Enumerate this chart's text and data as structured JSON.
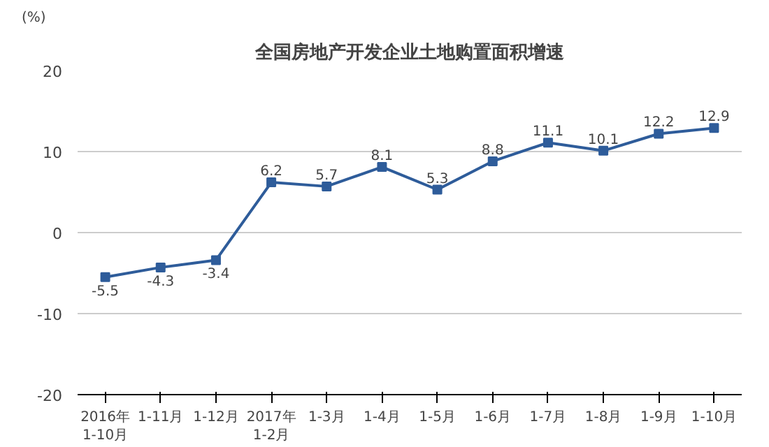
{
  "chart_data": {
    "type": "line",
    "title": "全国房地产开发企业土地购置面积增速",
    "ylabel": "(%)",
    "categories": [
      "2016年\n1-10月",
      "1-11月",
      "1-12月",
      "2017年\n1-2月",
      "1-3月",
      "1-4月",
      "1-5月",
      "1-6月",
      "1-7月",
      "1-8月",
      "1-9月",
      "1-10月"
    ],
    "values": [
      -5.5,
      -4.3,
      -3.4,
      6.2,
      5.7,
      8.1,
      5.3,
      8.8,
      11.1,
      10.1,
      12.2,
      12.9
    ],
    "color": "#2e5c9a",
    "ylim": [
      -20,
      20
    ],
    "yticks": [
      -20,
      -10,
      0,
      10,
      20
    ],
    "grid": "y",
    "marker": "square",
    "line_style": "solid",
    "data_labels": true
  }
}
